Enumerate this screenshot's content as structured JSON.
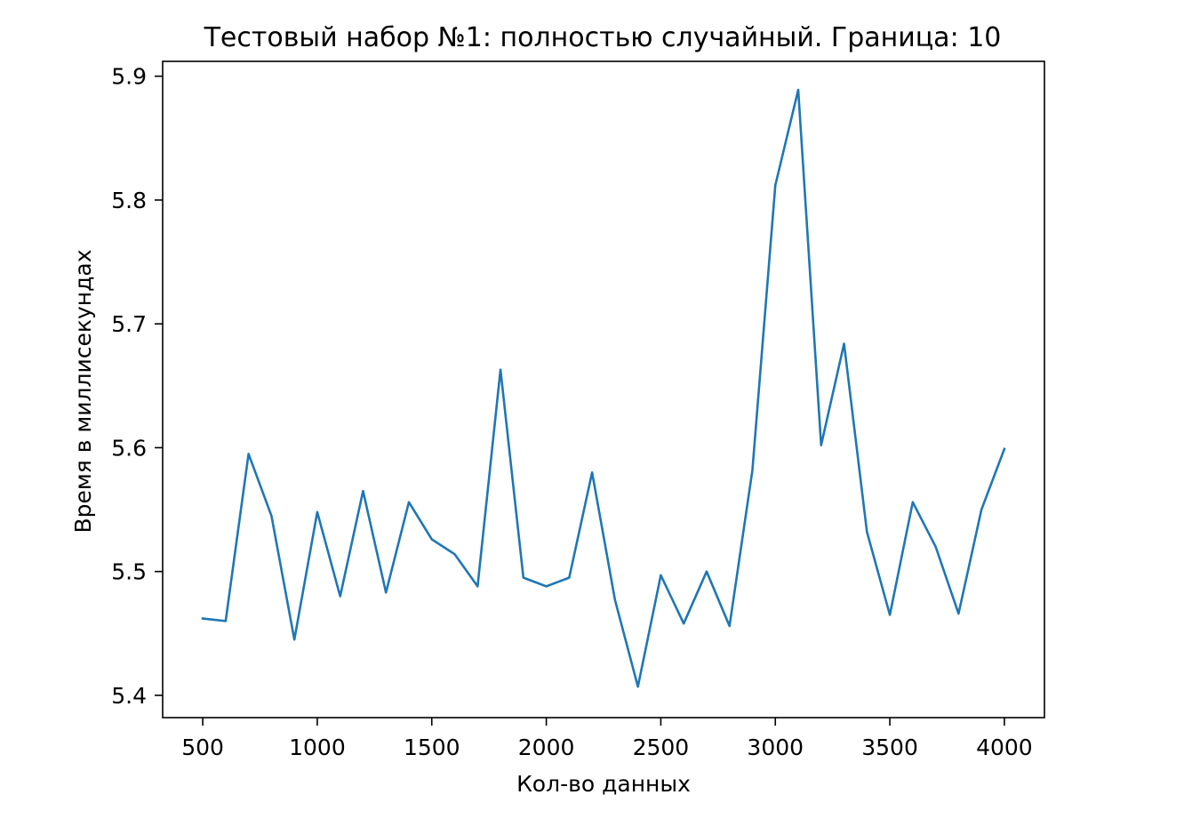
{
  "chart_data": {
    "type": "line",
    "title": "Тестовый набор №1: полностью случайный. Граница: 10",
    "xlabel": "Кол-во данных",
    "ylabel": "Время в миллисекундах",
    "xlim": [
      325,
      4175
    ],
    "ylim": [
      5.382,
      5.912
    ],
    "x_ticks": [
      500,
      1000,
      1500,
      2000,
      2500,
      3000,
      3500,
      4000
    ],
    "x_tick_labels": [
      "500",
      "1000",
      "1500",
      "2000",
      "2500",
      "3000",
      "3500",
      "4000"
    ],
    "y_ticks": [
      5.4,
      5.5,
      5.6,
      5.7,
      5.8,
      5.9
    ],
    "y_tick_labels": [
      "5.4",
      "5.5",
      "5.6",
      "5.7",
      "5.8",
      "5.9"
    ],
    "grid": false,
    "color": "#1f77b4",
    "series": [
      {
        "x": [
          500,
          600,
          700,
          800,
          900,
          1000,
          1100,
          1200,
          1300,
          1400,
          1500,
          1600,
          1700,
          1800,
          1900,
          2000,
          2100,
          2200,
          2300,
          2400,
          2500,
          2600,
          2700,
          2800,
          2900,
          3000,
          3100,
          3200,
          3300,
          3400,
          3500,
          3600,
          3700,
          3800,
          3900,
          4000
        ],
        "values": [
          5.462,
          5.46,
          5.595,
          5.545,
          5.445,
          5.548,
          5.48,
          5.565,
          5.483,
          5.556,
          5.526,
          5.514,
          5.488,
          5.663,
          5.495,
          5.488,
          5.495,
          5.58,
          5.477,
          5.407,
          5.497,
          5.458,
          5.5,
          5.456,
          5.582,
          5.812,
          5.889,
          5.602,
          5.684,
          5.532,
          5.465,
          5.556,
          5.52,
          5.466,
          5.55,
          5.599
        ]
      }
    ]
  }
}
